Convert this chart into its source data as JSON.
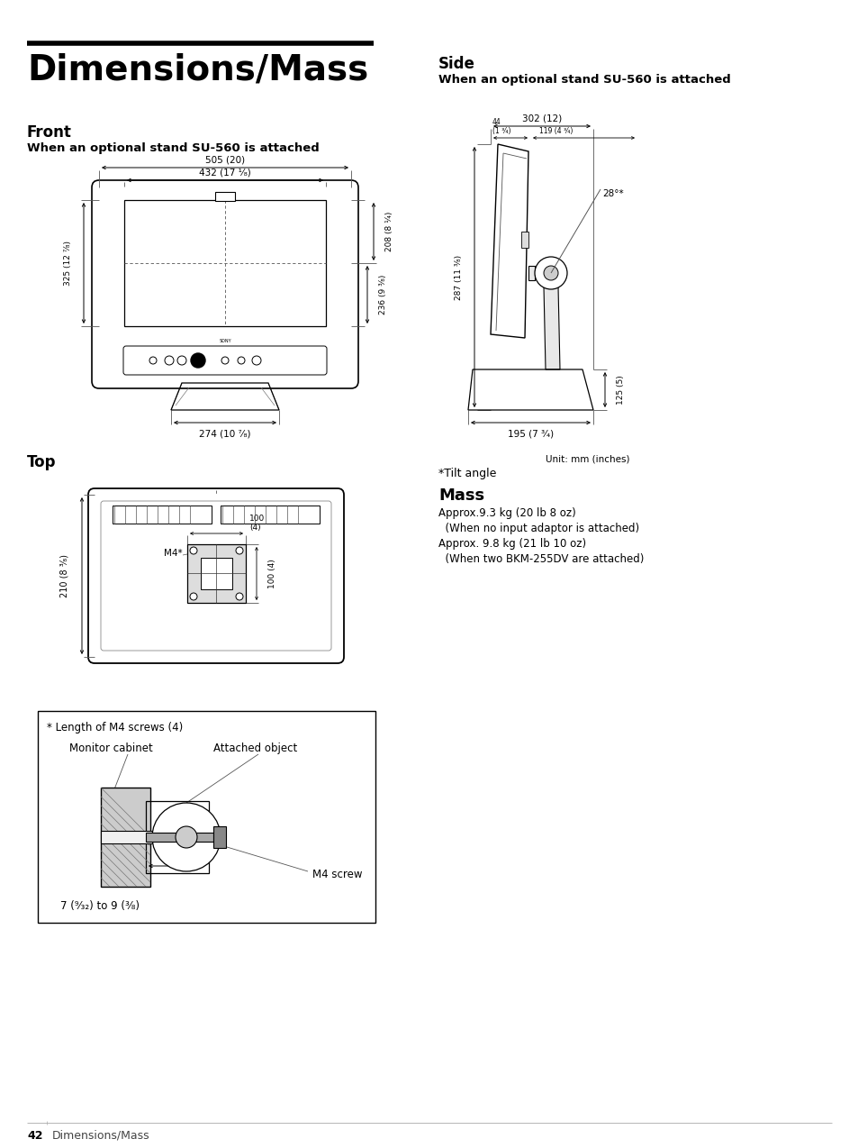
{
  "title": "Dimensions/Mass",
  "section_front": "Front",
  "section_front_subtitle": "When an optional stand SU-560 is attached",
  "section_side": "Side",
  "section_side_subtitle": "When an optional stand SU-560 is attached",
  "section_top": "Top",
  "mass_title": "Mass",
  "mass_lines": [
    "Approx.9.3 kg (20 lb 8 oz)",
    "  (When no input adaptor is attached)",
    "Approx. 9.8 kg (21 lb 10 oz)",
    "  (When two BKM-255DV are attached)"
  ],
  "unit_note": "Unit: mm (inches)",
  "tilt_note": "*Tilt angle",
  "screw_note": "* Length of M4 screws (4)",
  "monitor_cabinet": "Monitor cabinet",
  "attached_object": "Attached object",
  "m4_screw": "M4 screw",
  "screw_dim": "7 (⁹⁄₃₂) to 9 (³⁄₈)",
  "page_num": "42",
  "page_label": "Dimensions/Mass",
  "bg_color": "#ffffff",
  "line_color": "#000000"
}
